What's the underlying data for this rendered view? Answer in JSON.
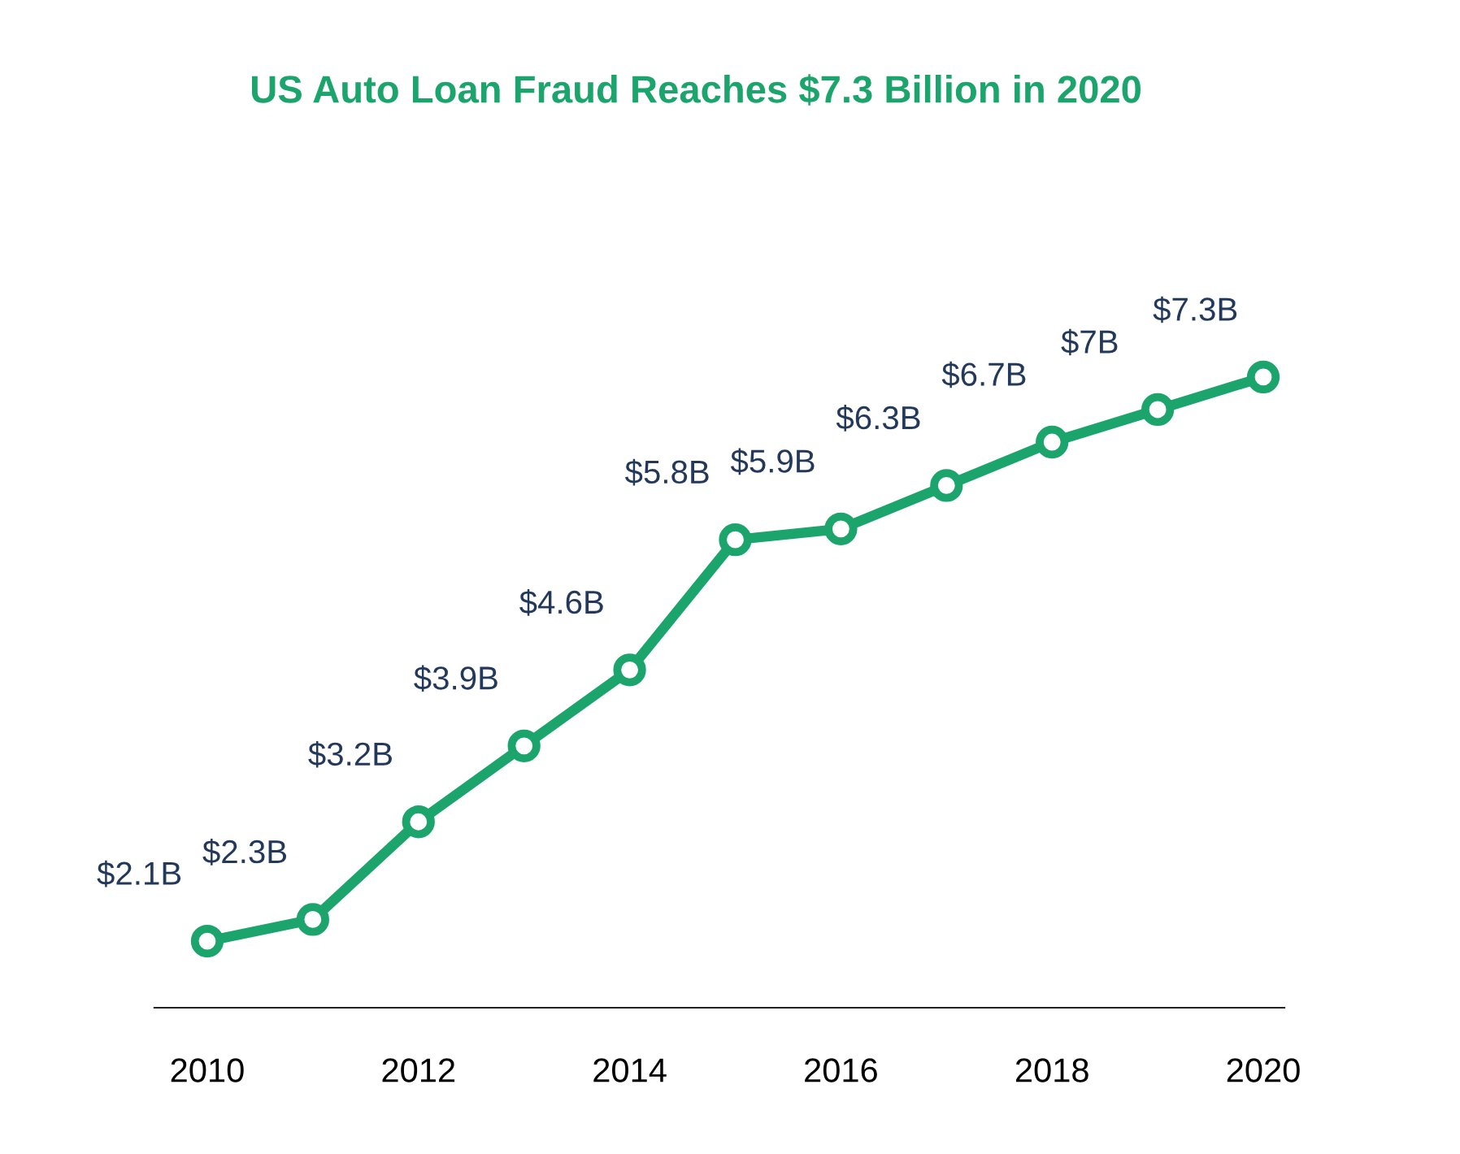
{
  "chart_data": {
    "type": "line",
    "title": "US Auto Loan Fraud Reaches $7.3 Billion in 2020",
    "x": [
      2010,
      2011,
      2012,
      2013,
      2014,
      2015,
      2016,
      2017,
      2018,
      2019,
      2020
    ],
    "series": [
      {
        "color": "#1ba56c",
        "values": [
          2.1,
          2.3,
          3.2,
          3.9,
          4.6,
          5.8,
          5.9,
          6.3,
          6.7,
          7,
          7.3
        ],
        "value_labels": [
          "$2.1B",
          "$2.3B",
          "$3.2B",
          "$3.9B",
          "$4.6B",
          "$5.8B",
          "$5.9B",
          "$6.3B",
          "$6.7B",
          "$7B",
          "$7.3B"
        ]
      }
    ],
    "xlim": [
      2009.5,
      2020.2
    ],
    "xticks": [
      2010,
      2012,
      2014,
      2016,
      2018,
      2020
    ],
    "tick_labels": "x",
    "marker": "circle",
    "line_style": "solid",
    "grid": false
  }
}
